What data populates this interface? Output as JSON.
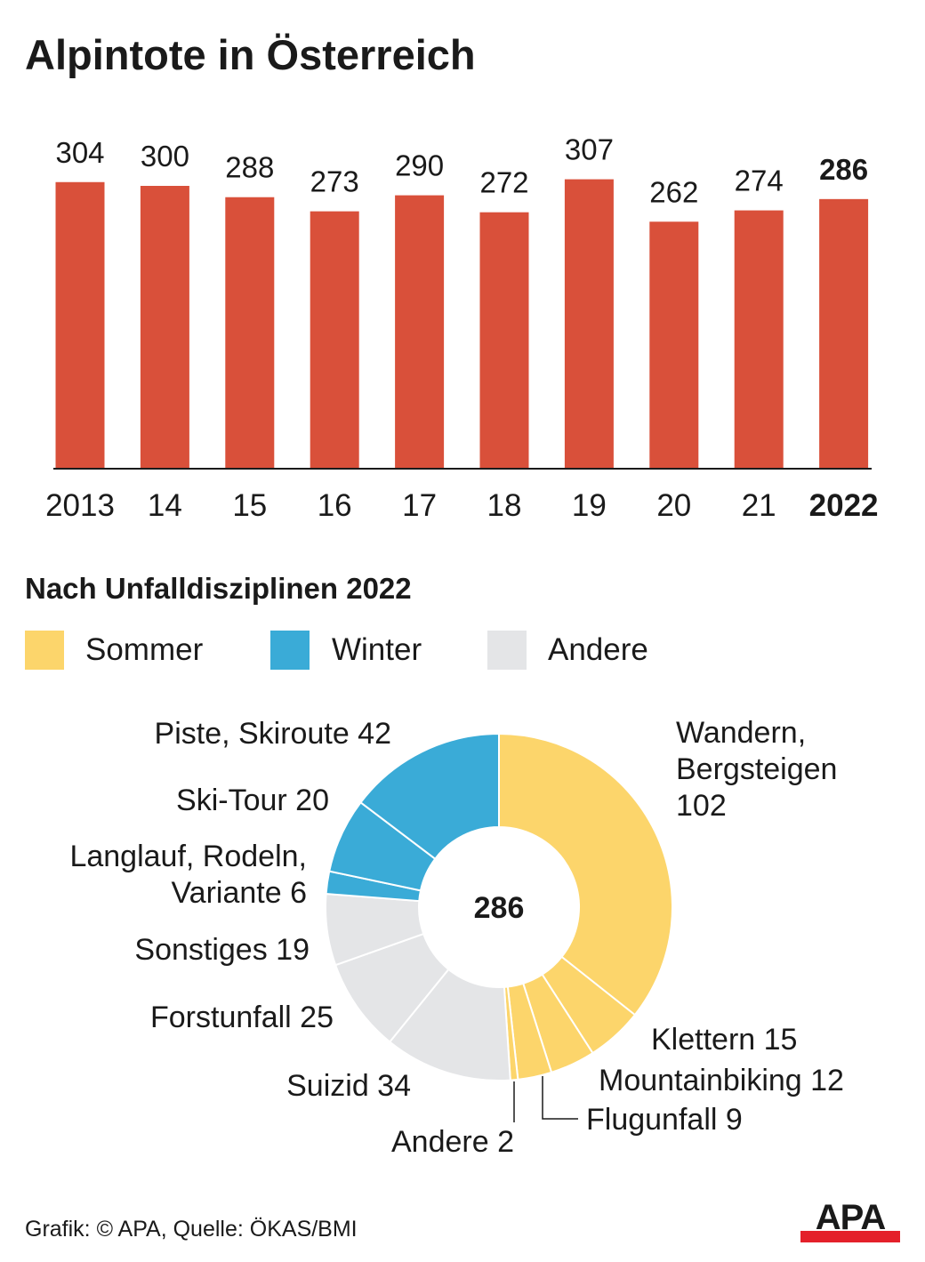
{
  "title": "Alpintote in Österreich",
  "chart_data": [
    {
      "type": "bar",
      "title": "Alpintote in Österreich",
      "categories": [
        "2013",
        "14",
        "15",
        "16",
        "17",
        "18",
        "19",
        "20",
        "21",
        "2022"
      ],
      "values": [
        304,
        300,
        288,
        273,
        290,
        272,
        307,
        262,
        274,
        286
      ],
      "highlight": "2022",
      "ylim": [
        0,
        320
      ],
      "grid": false,
      "color": "#d9503a"
    },
    {
      "type": "pie",
      "title": "Nach Unfalldisziplinen 2022",
      "donut": true,
      "center_label": "286",
      "legend": [
        {
          "name": "Sommer",
          "color": "#fcd56b"
        },
        {
          "name": "Winter",
          "color": "#3aabd7"
        },
        {
          "name": "Andere",
          "color": "#e4e5e7"
        }
      ],
      "slices": [
        {
          "label": "Wandern, Bergsteigen",
          "value": 102,
          "group": "Sommer"
        },
        {
          "label": "Klettern",
          "value": 15,
          "group": "Sommer"
        },
        {
          "label": "Mountainbiking",
          "value": 12,
          "group": "Sommer"
        },
        {
          "label": "Flugunfall",
          "value": 9,
          "group": "Sommer"
        },
        {
          "label": "Andere",
          "value": 2,
          "group": "Sommer"
        },
        {
          "label": "Suizid",
          "value": 34,
          "group": "Andere"
        },
        {
          "label": "Forstunfall",
          "value": 25,
          "group": "Andere"
        },
        {
          "label": "Sonstiges",
          "value": 19,
          "group": "Andere"
        },
        {
          "label": "Langlauf, Rodeln, Variante",
          "value": 6,
          "group": "Winter"
        },
        {
          "label": "Ski-Tour",
          "value": 20,
          "group": "Winter"
        },
        {
          "label": "Piste, Skiroute",
          "value": 42,
          "group": "Winter"
        }
      ],
      "slice_texts": [
        "Wandern,\nBergsteigen\n102",
        "Klettern 15",
        "Mountainbiking 12",
        "Flugunfall 9",
        "Andere 2",
        "Suizid 34",
        "Forstunfall 25",
        "Sonstiges 19",
        "Langlauf, Rodeln,\nVariante 6",
        "Ski-Tour 20",
        "Piste, Skiroute 42"
      ]
    }
  ],
  "source": "Grafik: © APA, Quelle: ÖKAS/BMI",
  "logo": "APA"
}
